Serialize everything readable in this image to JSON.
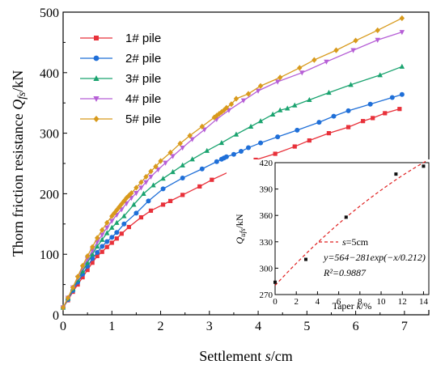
{
  "chart_data": [
    {
      "type": "line",
      "xlabel": "Settlement s/cm",
      "ylabel": "Thorn friction resistance Q_fs/kN",
      "xlim": [
        0,
        7.5
      ],
      "ylim": [
        0,
        500
      ],
      "xticks": [
        0,
        1,
        2,
        3,
        4,
        5,
        6,
        7
      ],
      "yticks": [
        0,
        100,
        200,
        300,
        400,
        500
      ],
      "legend_placement": "top-left",
      "series": [
        {
          "name": "1# pile",
          "color": "#e8313a",
          "marker": "square",
          "x": [
            0,
            0.1,
            0.2,
            0.3,
            0.4,
            0.5,
            0.6,
            0.7,
            0.8,
            0.9,
            1.0,
            1.1,
            1.2,
            1.35,
            1.6,
            1.8,
            2.05,
            2.2,
            2.45,
            2.8,
            3.05,
            3.4,
            3.95,
            4.35,
            4.75,
            5.05,
            5.45,
            5.85,
            6.15,
            6.35,
            6.6,
            6.9
          ],
          "y": [
            12,
            24,
            38,
            50,
            62,
            74,
            86,
            97,
            104,
            112,
            119,
            126,
            134,
            145,
            161,
            172,
            182,
            188,
            198,
            212,
            223,
            236,
            256,
            266,
            278,
            288,
            300,
            310,
            320,
            325,
            333,
            340
          ]
        },
        {
          "name": "2# pile",
          "color": "#1f6fd8",
          "marker": "circle",
          "x": [
            0,
            0.1,
            0.2,
            0.3,
            0.4,
            0.5,
            0.6,
            0.7,
            0.8,
            0.9,
            1.0,
            1.1,
            1.25,
            1.5,
            1.75,
            2.05,
            2.45,
            2.85,
            3.15,
            3.25,
            3.3,
            3.35,
            3.5,
            3.65,
            3.8,
            4.05,
            4.4,
            4.8,
            5.25,
            5.55,
            5.85,
            6.3,
            6.75,
            6.95
          ],
          "y": [
            12,
            25,
            40,
            54,
            67,
            80,
            93,
            103,
            113,
            121,
            128,
            136,
            150,
            168,
            188,
            208,
            226,
            241,
            253,
            257,
            259,
            261,
            265,
            270,
            276,
            284,
            294,
            305,
            318,
            328,
            337,
            348,
            359,
            364
          ]
        },
        {
          "name": "3# pile",
          "color": "#1aa36f",
          "marker": "triangle-up",
          "x": [
            0,
            0.1,
            0.2,
            0.3,
            0.4,
            0.5,
            0.6,
            0.7,
            0.8,
            0.9,
            1.0,
            1.1,
            1.25,
            1.45,
            1.65,
            1.85,
            2.05,
            2.25,
            2.45,
            2.65,
            2.95,
            3.25,
            3.55,
            3.85,
            4.05,
            4.3,
            4.45,
            4.6,
            4.75,
            5.05,
            5.45,
            5.9,
            6.5,
            6.95
          ],
          "y": [
            12,
            27,
            43,
            58,
            72,
            86,
            100,
            113,
            124,
            135,
            144,
            152,
            163,
            182,
            200,
            214,
            225,
            236,
            247,
            257,
            271,
            284,
            298,
            311,
            320,
            331,
            338,
            341,
            346,
            355,
            367,
            380,
            396,
            410
          ]
        },
        {
          "name": "4# pile",
          "color": "#b65fd6",
          "marker": "triangle-down",
          "x": [
            0,
            0.1,
            0.2,
            0.3,
            0.4,
            0.5,
            0.6,
            0.7,
            0.8,
            0.9,
            1.0,
            1.1,
            1.2,
            1.3,
            1.4,
            1.5,
            1.6,
            1.7,
            1.8,
            1.95,
            2.1,
            2.25,
            2.45,
            2.65,
            2.9,
            3.15,
            3.4,
            3.7,
            4.0,
            4.4,
            4.9,
            5.4,
            5.95,
            6.45,
            6.95
          ],
          "y": [
            12,
            28,
            45,
            61,
            78,
            92,
            106,
            120,
            132,
            144,
            155,
            165,
            174,
            184,
            193,
            201,
            210,
            219,
            228,
            240,
            251,
            262,
            276,
            290,
            306,
            323,
            338,
            354,
            370,
            385,
            400,
            418,
            437,
            454,
            467
          ]
        },
        {
          "name": "5# pile",
          "color": "#d89a1c",
          "marker": "diamond",
          "x": [
            0,
            0.1,
            0.2,
            0.3,
            0.4,
            0.5,
            0.6,
            0.7,
            0.8,
            0.9,
            1.0,
            1.05,
            1.1,
            1.15,
            1.2,
            1.25,
            1.3,
            1.35,
            1.4,
            1.5,
            1.6,
            1.7,
            1.8,
            1.9,
            2.0,
            2.2,
            2.4,
            2.6,
            2.85,
            3.1,
            3.15,
            3.2,
            3.25,
            3.3,
            3.35,
            3.45,
            3.55,
            3.8,
            4.05,
            4.45,
            4.85,
            5.15,
            5.6,
            6.0,
            6.45,
            6.95
          ],
          "y": [
            12,
            28,
            45,
            63,
            81,
            97,
            112,
            127,
            140,
            152,
            163,
            168,
            173,
            178,
            183,
            188,
            193,
            197,
            201,
            210,
            219,
            228,
            237,
            245,
            254,
            268,
            283,
            296,
            311,
            326,
            329,
            332,
            335,
            338,
            342,
            348,
            357,
            365,
            378,
            392,
            408,
            421,
            437,
            453,
            470,
            490
          ]
        }
      ]
    },
    {
      "type": "scatter",
      "xlabel": "Taper k/%",
      "ylabel": "Q_ufs/kN",
      "xlim": [
        0,
        14.5
      ],
      "ylim": [
        270,
        420
      ],
      "xticks": [
        0,
        2,
        4,
        6,
        8,
        10,
        12,
        14
      ],
      "yticks": [
        270,
        300,
        330,
        360,
        390,
        420
      ],
      "legend_placement": "bottom-right",
      "points": {
        "x": [
          0,
          2.9,
          6.7,
          11.4,
          14.0
        ],
        "y": [
          284,
          310,
          358,
          407,
          416
        ],
        "color": "#111111"
      },
      "fit": {
        "legend_label": "s=5cm",
        "color": "#e02020",
        "equation": "y=564−281exp(−x/0.212)",
        "r2_label": "R²=0.9887"
      }
    }
  ]
}
